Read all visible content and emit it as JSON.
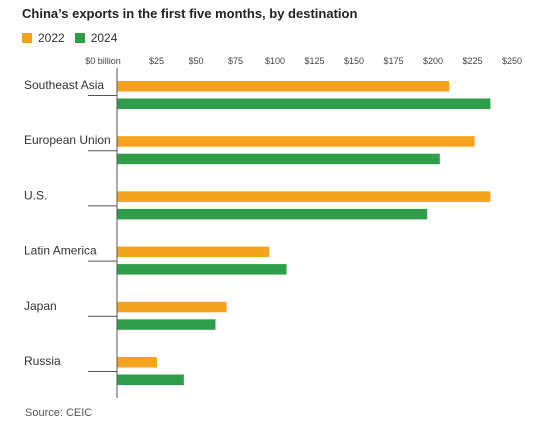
{
  "title": "China’s exports in the first five months, by destination",
  "source": "Source: CEIC",
  "colors": {
    "2022": "#F5A21E",
    "2024": "#2E9E4A",
    "axis": "#555555",
    "grid": "#cfcfcf"
  },
  "chart_data": {
    "type": "bar",
    "orientation": "horizontal",
    "title": "China’s exports in the first five months, by destination",
    "categories": [
      "Southeast Asia",
      "European Union",
      "U.S.",
      "Latin America",
      "Japan",
      "Russia"
    ],
    "series": [
      {
        "name": "2022",
        "values": [
          210,
          226,
          236,
          96,
          69,
          25
        ]
      },
      {
        "name": "2024",
        "values": [
          236,
          204,
          196,
          107,
          62,
          42
        ]
      }
    ],
    "xlim": [
      0,
      250
    ],
    "tick_values": [
      0,
      25,
      50,
      75,
      100,
      125,
      150,
      175,
      200,
      225,
      250
    ],
    "tick_labels": [
      "$0 billion",
      "$25",
      "$50",
      "$75",
      "$100",
      "$125",
      "$150",
      "$175",
      "$200",
      "$225",
      "$250"
    ],
    "legend_position": "top-left",
    "grid": false
  }
}
